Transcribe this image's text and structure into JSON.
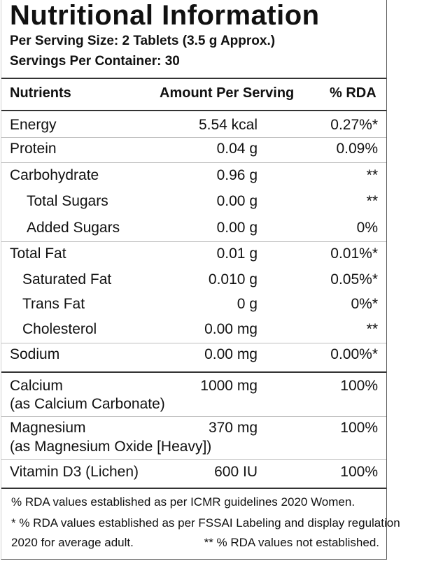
{
  "title": "Nutritional Information",
  "serving_size": "Per Serving Size: 2 Tablets (3.5 g Approx.)",
  "servings_per_container": "Servings Per Container: 30",
  "table": {
    "headers": {
      "nutrient": "Nutrients",
      "amount": "Amount Per Serving",
      "rda": "% RDA"
    },
    "rows": [
      {
        "name": "Energy",
        "sub": "",
        "amount": "5.54 kcal",
        "rda": "0.27%*"
      },
      {
        "name": "Protein",
        "sub": "",
        "amount": "0.04 g",
        "rda": "0.09%"
      },
      {
        "name": "Carbohydrate",
        "sub": "",
        "amount": "0.96 g",
        "rda": "**"
      },
      {
        "name": "Total Sugars",
        "sub": "",
        "amount": "0.00 g",
        "rda": "**"
      },
      {
        "name": "Added Sugars",
        "sub": "",
        "amount": "0.00 g",
        "rda": "0%"
      },
      {
        "name": "Total Fat",
        "sub": "",
        "amount": "0.01 g",
        "rda": "0.01%*"
      },
      {
        "name": "Saturated Fat",
        "sub": "",
        "amount": "0.010 g",
        "rda": "0.05%*"
      },
      {
        "name": "Trans Fat",
        "sub": "",
        "amount": "0 g",
        "rda": "0%*"
      },
      {
        "name": "Cholesterol",
        "sub": "",
        "amount": "0.00 mg",
        "rda": "**"
      },
      {
        "name": "Sodium",
        "sub": "",
        "amount": "0.00 mg",
        "rda": "0.00%*"
      },
      {
        "name": "Calcium",
        "sub": "(as Calcium Carbonate)",
        "amount": "1000 mg",
        "rda": "100%"
      },
      {
        "name": "Magnesium",
        "sub": "(as Magnesium Oxide [Heavy])",
        "amount": "370 mg",
        "rda": "100%"
      },
      {
        "name": "Vitamin D3 (Lichen)",
        "sub": "",
        "amount": "600 IU",
        "rda": "100%"
      }
    ]
  },
  "footnotes": {
    "line1": "% RDA values established as per ICMR guidelines 2020 Women.",
    "line2": "* % RDA values established as per FSSAI Labeling and display regulation",
    "line3_left": "2020 for average adult.",
    "line3_right": "** % RDA values not established."
  }
}
